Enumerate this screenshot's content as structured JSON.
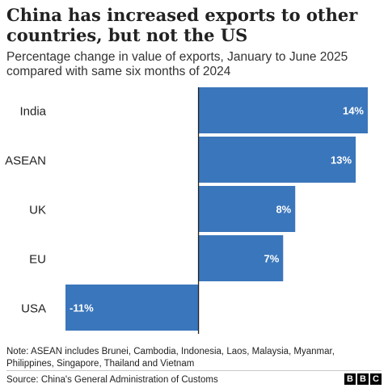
{
  "chart_data": {
    "type": "bar",
    "orientation": "horizontal",
    "title": "China has increased exports to other countries, but not the US",
    "subtitle": "Percentage change in value of exports, January to June 2025 compared with same six months of 2024",
    "categories": [
      "India",
      "ASEAN",
      "UK",
      "EU",
      "USA"
    ],
    "values": [
      14,
      13,
      8,
      7,
      -11
    ],
    "data_labels": [
      "14%",
      "13%",
      "8%",
      "7%",
      "-11%"
    ],
    "xlim": [
      -11,
      14
    ],
    "bar_color": "#3a76bb",
    "grid": false,
    "legend": "none",
    "note": "Note: ASEAN includes Brunei, Cambodia, Indonesia, Laos, Malaysia, Myanmar, Philippines, Singapore, Thailand and Vietnam",
    "source": "Source: China's General Administration of Customs"
  },
  "logo": {
    "letters": [
      "B",
      "B",
      "C"
    ]
  }
}
